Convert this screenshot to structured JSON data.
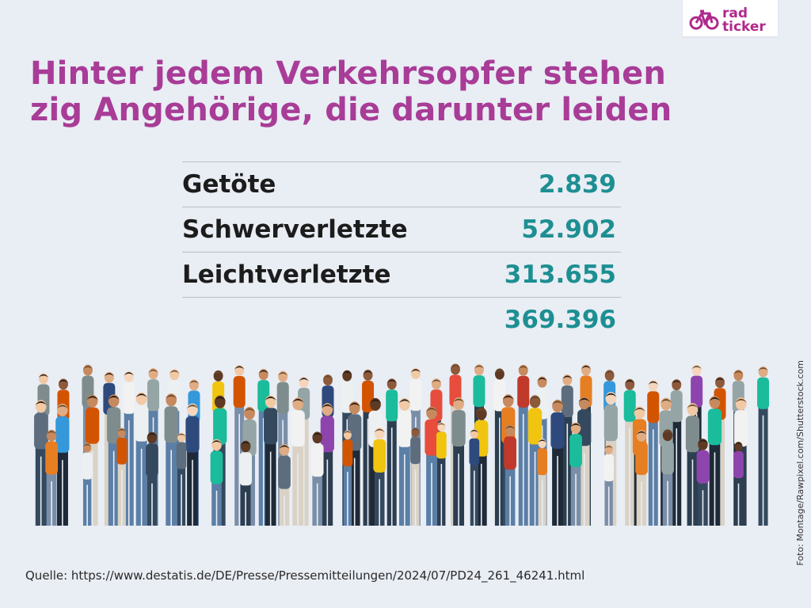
{
  "logo": {
    "line1": "rad",
    "line2": "ticker",
    "icon": "bicycle-icon",
    "color": "#b0298d"
  },
  "headline": {
    "line1": "Hinter jedem Verkehrsopfer stehen",
    "line2": "zig Angehörige, die darunter leiden"
  },
  "stats": {
    "rows": [
      {
        "label": "Getöte",
        "value": "2.839"
      },
      {
        "label": "Schwerverletzte",
        "value": "52.902"
      },
      {
        "label": "Leichtverletzte",
        "value": "313.655"
      }
    ],
    "total": "369.396"
  },
  "colors": {
    "headline": "#a83c97",
    "value": "#1d8f92",
    "label": "#1c1c1c",
    "background": "#e9edf4"
  },
  "photo": {
    "icon": "crowd-photo"
  },
  "source": "Quelle: https://www.destatis.de/DE/Presse/Pressemitteilungen/2024/07/PD24_261_46241.html",
  "credit": "Foto: Montage/Rawpixel.com/Shutterstock.com"
}
